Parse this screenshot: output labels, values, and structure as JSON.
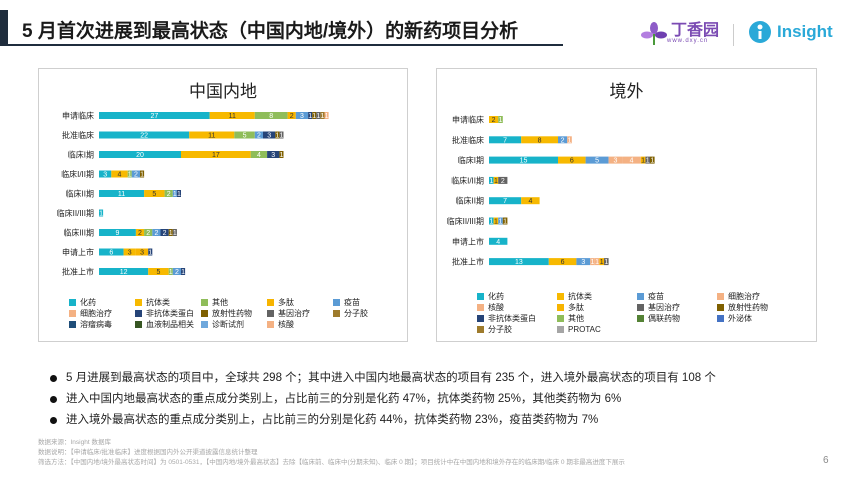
{
  "header": {
    "title": "5 月首次进展到最高状态（中国内地/境外）的新药项目分析"
  },
  "logos": {
    "dxy_name": "丁香园",
    "dxy_url": "www.dxy.cn",
    "insight_name": "Insight"
  },
  "colors": {
    "化药": "#17b3c9",
    "抗体类": "#f7b900",
    "其他": "#8fbd5a",
    "多肽": "#f7b400",
    "疫苗": "#5b9bd5",
    "非抗体类蛋白": "#264478",
    "放射性药物": "#7f6000",
    "基因治疗": "#636363",
    "分子胶": "#9e7b2c",
    "细胞治疗": "#f4b183",
    "溶瘤病毒": "#1f4e79",
    "血液制品相关": "#375623",
    "诊断试剂": "#6fa8dc",
    "核酸": "#f4b183",
    "偶联药物": "#548235",
    "外泌体": "#4472c4",
    "PROTAC": "#a5a5a5"
  },
  "chart_data": [
    {
      "type": "bar",
      "orientation": "horizontal",
      "stacked": true,
      "title": "中国内地",
      "categories": [
        "申请临床",
        "批准临床",
        "临床I期",
        "临床I/II期",
        "临床II期",
        "临床II/III期",
        "临床III期",
        "申请上市",
        "批准上市"
      ],
      "series": [
        {
          "name": "化药",
          "values": [
            27,
            22,
            20,
            3,
            11,
            1,
            9,
            6,
            12
          ]
        },
        {
          "name": "抗体类",
          "values": [
            11,
            11,
            17,
            4,
            5,
            0,
            2,
            3,
            5
          ]
        },
        {
          "name": "其他",
          "values": [
            8,
            5,
            4,
            1,
            2,
            0,
            2,
            0,
            1
          ]
        },
        {
          "name": "多肽",
          "values": [
            2,
            0,
            0,
            0,
            0,
            0,
            0,
            3,
            0
          ]
        },
        {
          "name": "疫苗",
          "values": [
            3,
            2,
            0,
            2,
            1,
            0,
            2,
            0,
            2
          ]
        },
        {
          "name": "非抗体类蛋白",
          "values": [
            1,
            3,
            3,
            0,
            1,
            0,
            2,
            1,
            1
          ]
        },
        {
          "name": "放射性药物",
          "values": [
            1,
            1,
            1,
            1,
            0,
            0,
            1,
            0,
            0
          ]
        },
        {
          "name": "基因治疗",
          "values": [
            1,
            1,
            0,
            0,
            0,
            0,
            1,
            0,
            0
          ]
        },
        {
          "name": "分子胶",
          "values": [
            1,
            0,
            0,
            0,
            0,
            0,
            0,
            0,
            0
          ]
        },
        {
          "name": "细胞治疗",
          "values": [
            1,
            0,
            0,
            0,
            0,
            0,
            0,
            0,
            0
          ]
        },
        {
          "name": "溶瘤病毒",
          "values": [
            0,
            0,
            0,
            0,
            0,
            0,
            0,
            0,
            0
          ]
        },
        {
          "name": "血液制品相关",
          "values": [
            0,
            0,
            0,
            0,
            0,
            0,
            0,
            0,
            0
          ]
        },
        {
          "name": "诊断试剂",
          "values": [
            0,
            0,
            0,
            0,
            0,
            0,
            0,
            0,
            0
          ]
        },
        {
          "name": "核酸",
          "values": [
            0,
            0,
            0,
            0,
            0,
            0,
            0,
            0,
            0
          ]
        }
      ]
    },
    {
      "type": "bar",
      "orientation": "horizontal",
      "stacked": true,
      "title": "境外",
      "categories": [
        "申请临床",
        "批准临床",
        "临床I期",
        "临床I/II期",
        "临床II期",
        "临床II/III期",
        "申请上市",
        "批准上市"
      ],
      "series": [
        {
          "name": "化药",
          "values": [
            0,
            7,
            15,
            1,
            7,
            1,
            4,
            13
          ]
        },
        {
          "name": "抗体类",
          "values": [
            2,
            8,
            6,
            1,
            4,
            1,
            0,
            6
          ]
        },
        {
          "name": "疫苗",
          "values": [
            0,
            2,
            5,
            0,
            0,
            1,
            0,
            3
          ]
        },
        {
          "name": "细胞治疗",
          "values": [
            0,
            1,
            3,
            0,
            0,
            0,
            0,
            1
          ]
        },
        {
          "name": "核酸",
          "values": [
            0,
            0,
            4,
            0,
            0,
            0,
            0,
            1
          ]
        },
        {
          "name": "多肽",
          "values": [
            0,
            0,
            1,
            0,
            0,
            0,
            0,
            1
          ]
        },
        {
          "name": "基因治疗",
          "values": [
            0,
            0,
            1,
            2,
            0,
            0,
            0,
            1
          ]
        },
        {
          "name": "放射性药物",
          "values": [
            0,
            0,
            1,
            0,
            0,
            1,
            0,
            0
          ]
        },
        {
          "name": "非抗体类蛋白",
          "values": [
            0,
            0,
            0,
            0,
            0,
            0,
            0,
            0
          ]
        },
        {
          "name": "其他",
          "values": [
            1,
            0,
            0,
            0,
            0,
            0,
            0,
            0
          ]
        },
        {
          "name": "偶联药物",
          "values": [
            0,
            0,
            0,
            0,
            0,
            0,
            0,
            0
          ]
        },
        {
          "name": "外泌体",
          "values": [
            0,
            0,
            0,
            0,
            0,
            0,
            0,
            0
          ]
        },
        {
          "name": "分子胶",
          "values": [
            0,
            0,
            0,
            0,
            0,
            0,
            0,
            0
          ]
        },
        {
          "name": "PROTAC",
          "values": [
            0,
            0,
            0,
            0,
            0,
            0,
            0,
            0
          ]
        }
      ]
    }
  ],
  "legends": {
    "china": [
      "化药",
      "抗体类",
      "其他",
      "多肽",
      "疫苗",
      "细胞治疗",
      "非抗体类蛋白",
      "放射性药物",
      "基因治疗",
      "分子胶",
      "溶瘤病毒",
      "血液制品相关",
      "诊断试剂",
      "核酸"
    ],
    "overseas": [
      "化药",
      "抗体类",
      "疫苗",
      "细胞治疗",
      "核酸",
      "多肽",
      "基因治疗",
      "放射性药物",
      "非抗体类蛋白",
      "其他",
      "偶联药物",
      "外泌体",
      "分子胶",
      "PROTAC"
    ]
  },
  "bullets": [
    "5 月进展到最高状态的项目中，全球共 298 个；其中进入中国内地最高状态的项目有 235 个，进入境外最高状态的项目有 108 个",
    "进入中国内地最高状态的重点成分类别上，占比前三的分别是化药 47%，抗体类药物 25%，其他类药物为 6%",
    "进入境外最高状态的重点成分类别上，占比前三的分别是化药 44%，抗体类药物 23%，疫苗类药物为 7%"
  ],
  "footnotes": [
    "数据来源：Insight 数据库",
    "数据说明：【申请临床/批准临床】进度根据国内外公开渠道披露信息统计整理",
    "筛选方法：【中国内地/境外最高状态时间】为 0501-0531，【中国内地/境外最高状态】去除【临床前、临床中(分期未知)、临床 0 期】；项目统计中在中国内地和境外存在的临床期/临床 0 期非最高进度下展示"
  ],
  "page_number": "6"
}
